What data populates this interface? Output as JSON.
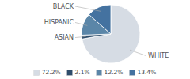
{
  "chart_data": {
    "type": "pie",
    "categories": [
      "WHITE",
      "ASIAN",
      "HISPANIC",
      "BLACK"
    ],
    "values": [
      72.2,
      2.1,
      12.2,
      13.4
    ],
    "value_labels": [
      "72.2%",
      "2.1%",
      "12.2%",
      "13.4%"
    ],
    "colors": [
      "#d6dce4",
      "#2e4d6b",
      "#5b86a8",
      "#4472a0"
    ],
    "legend": "bottom"
  }
}
